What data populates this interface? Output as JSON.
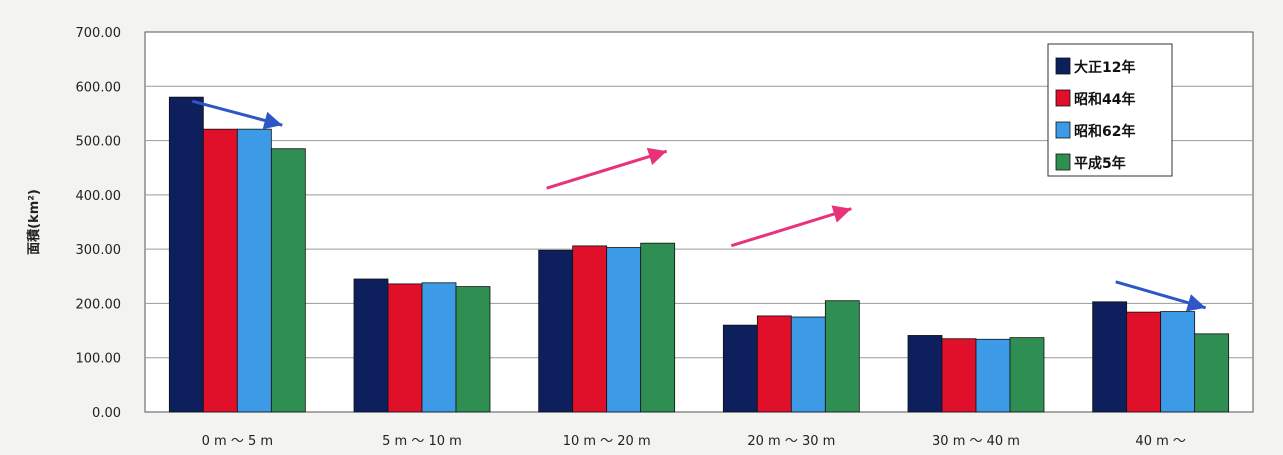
{
  "chart_data": {
    "type": "bar",
    "title": "",
    "xlabel": "",
    "ylabel": "面積(km²)",
    "ylim": [
      0,
      700
    ],
    "yticks": [
      "0.00",
      "100.00",
      "200.00",
      "300.00",
      "400.00",
      "500.00",
      "600.00",
      "700.00"
    ],
    "grid": true,
    "legend_position": "top-right",
    "categories": [
      "0 m ～ 5 m",
      "5 m ～ 10 m",
      "10 m ～ 20 m",
      "20 m ～ 30 m",
      "30 m ～ 40 m",
      "40 m ～"
    ],
    "series": [
      {
        "name": "大正12年",
        "color": "#0d1f5c",
        "values": [
          580,
          245,
          298,
          160,
          141,
          203
        ]
      },
      {
        "name": "昭和44年",
        "color": "#e0102a",
        "values": [
          521,
          236,
          306,
          177,
          135,
          184
        ]
      },
      {
        "name": "昭和62年",
        "color": "#3d9ae6",
        "values": [
          521,
          238,
          303,
          175,
          134,
          185
        ]
      },
      {
        "name": "平成5年",
        "color": "#2f8f52",
        "values": [
          485,
          231,
          311,
          205,
          137,
          144
        ]
      }
    ],
    "annotations": [
      {
        "type": "arrow",
        "direction": "down",
        "color": "#2e56c8",
        "category": "0 m ～ 5 m"
      },
      {
        "type": "arrow",
        "direction": "up",
        "color": "#e8327a",
        "category": "10 m ～ 20 m"
      },
      {
        "type": "arrow",
        "direction": "up",
        "color": "#e8327a",
        "category": "20 m ～ 30 m"
      },
      {
        "type": "arrow",
        "direction": "down",
        "color": "#2e56c8",
        "category": "40 m ～"
      }
    ]
  }
}
